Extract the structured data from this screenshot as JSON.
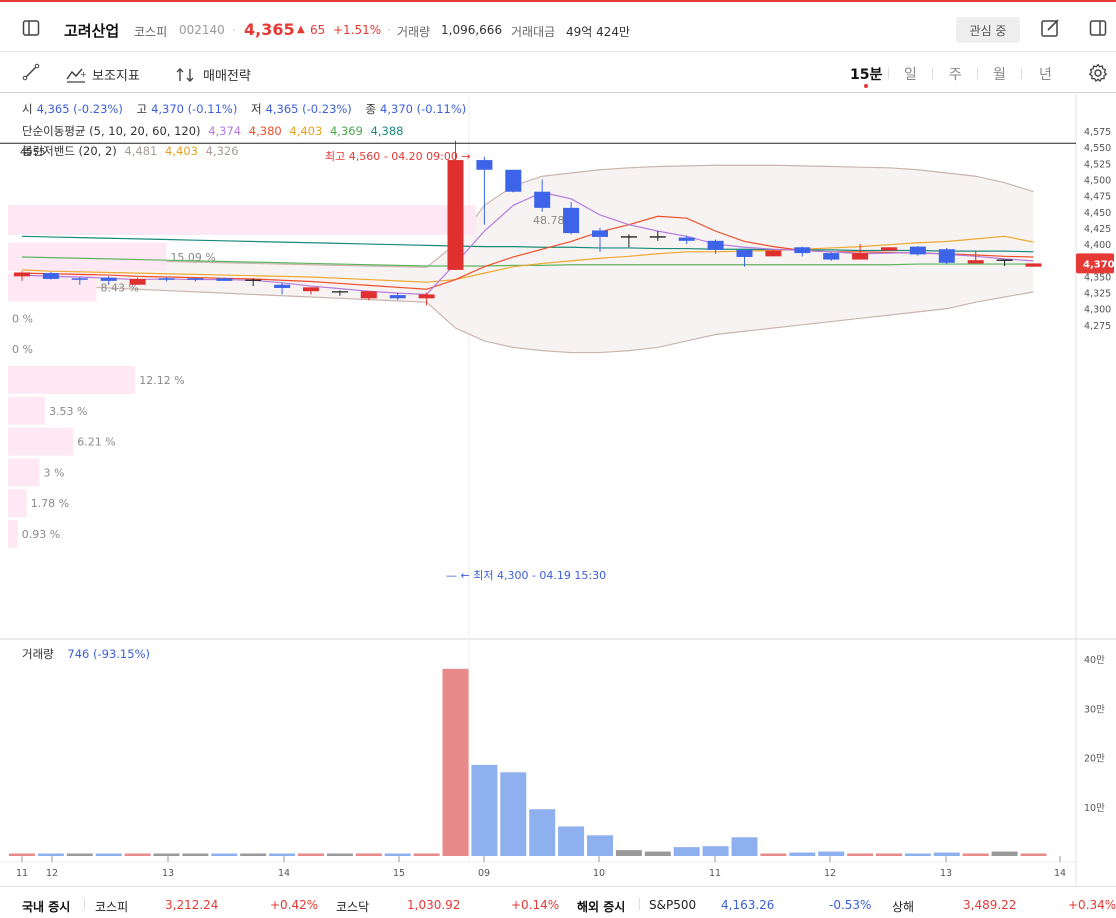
{
  "header": {
    "name": "고려산업",
    "market": "코스피",
    "code": "002140",
    "price": "4,365",
    "change": "65",
    "change_pct": "+1.51%",
    "volume_label": "거래량",
    "volume": "1,096,666",
    "amount_label": "거래대금",
    "amount": "49억 424만",
    "watch_label": "관심 중"
  },
  "toolbar": {
    "indicator_label": "보조지표",
    "strategy_label": "매매전략",
    "periods": [
      "15분",
      "일",
      "주",
      "월",
      "년"
    ],
    "active_period": "15분"
  },
  "legend": {
    "ohlc": {
      "open_label": "시",
      "open": "4,365 (-0.23%)",
      "high_label": "고",
      "high": "4,370 (-0.11%)",
      "low_label": "저",
      "low": "4,365 (-0.23%)",
      "close_label": "종",
      "close": "4,370 (-0.11%)"
    },
    "ma_label": "단순이동평균 (5, 10, 20, 60, 120)",
    "ma_values": [
      "4,374",
      "4,380",
      "4,403",
      "4,369",
      "4,388"
    ],
    "bb_label": "볼린저밴드 (20, 2)",
    "bb_values": [
      "4,481",
      "4,403",
      "4,326"
    ],
    "volume_label": "거래량",
    "volume_value": "746 (-93.15%)"
  },
  "annotations": {
    "high": "최고 4,560 - 04.20 09:00",
    "low": "최저 4,300 - 04.19 15:30",
    "current_price_tag": "4,370",
    "overlap_label": "4555"
  },
  "colors": {
    "up": "#e02f2f",
    "down": "#3d64e8",
    "ma5": "#b57be0",
    "ma10": "#f04e28",
    "ma20": "#f0a830",
    "ma60": "#5fb35f",
    "ma120": "#1a8a7a",
    "bb": "#c9b5b0",
    "bb_fill": "#f7f3f2"
  },
  "chart_data": {
    "type": "candlestick",
    "price_axis_ticks": [
      "4,575",
      "4,550",
      "4,525",
      "4,500",
      "4,475",
      "4,450",
      "4,425",
      "4,400",
      "4,375",
      "4,350",
      "4,325",
      "4,300",
      "4,275"
    ],
    "volume_axis_ticks": [
      "40만",
      "30만",
      "20만",
      "10만"
    ],
    "x_tick_labels": [
      "11",
      "12",
      "13",
      "14",
      "15",
      "09",
      "10",
      "11",
      "12",
      "13",
      "14"
    ],
    "ylim": [
      4265,
      4590
    ],
    "volume_ylim": [
      0,
      400000
    ],
    "candles": [
      {
        "o": 4350,
        "h": 4358,
        "l": 4343,
        "c": 4356
      },
      {
        "o": 4355,
        "h": 4357,
        "l": 4345,
        "c": 4346
      },
      {
        "o": 4347,
        "h": 4349,
        "l": 4337,
        "c": 4346
      },
      {
        "o": 4348,
        "h": 4350,
        "l": 4337,
        "c": 4343
      },
      {
        "o": 4337,
        "h": 4348,
        "l": 4337,
        "c": 4346
      },
      {
        "o": 4347,
        "h": 4349,
        "l": 4342,
        "c": 4346
      },
      {
        "o": 4347,
        "h": 4349,
        "l": 4342,
        "c": 4346
      },
      {
        "o": 4347,
        "h": 4348,
        "l": 4343,
        "c": 4343
      },
      {
        "o": 4344,
        "h": 4347,
        "l": 4335,
        "c": 4344
      },
      {
        "o": 4337,
        "h": 4340,
        "l": 4322,
        "c": 4332
      },
      {
        "o": 4327,
        "h": 4333,
        "l": 4322,
        "c": 4333
      },
      {
        "o": 4326,
        "h": 4328,
        "l": 4320,
        "c": 4326
      },
      {
        "o": 4316,
        "h": 4327,
        "l": 4313,
        "c": 4327
      },
      {
        "o": 4321,
        "h": 4325,
        "l": 4313,
        "c": 4316
      },
      {
        "o": 4316,
        "h": 4325,
        "l": 4305,
        "c": 4322
      },
      {
        "o": 4360,
        "h": 4560,
        "l": 4360,
        "c": 4530
      },
      {
        "o": 4530,
        "h": 4535,
        "l": 4430,
        "c": 4515
      },
      {
        "o": 4515,
        "h": 4515,
        "l": 4480,
        "c": 4481
      },
      {
        "o": 4481,
        "h": 4500,
        "l": 4450,
        "c": 4456
      },
      {
        "o": 4456,
        "h": 4465,
        "l": 4415,
        "c": 4417
      },
      {
        "o": 4421,
        "h": 4425,
        "l": 4388,
        "c": 4411
      },
      {
        "o": 4411,
        "h": 4415,
        "l": 4395,
        "c": 4411
      },
      {
        "o": 4411,
        "h": 4420,
        "l": 4405,
        "c": 4411
      },
      {
        "o": 4410,
        "h": 4413,
        "l": 4400,
        "c": 4405
      },
      {
        "o": 4405,
        "h": 4407,
        "l": 4385,
        "c": 4391
      },
      {
        "o": 4391,
        "h": 4392,
        "l": 4365,
        "c": 4380
      },
      {
        "o": 4381,
        "h": 4391,
        "l": 4381,
        "c": 4390
      },
      {
        "o": 4395,
        "h": 4396,
        "l": 4381,
        "c": 4386
      },
      {
        "o": 4386,
        "h": 4387,
        "l": 4374,
        "c": 4376
      },
      {
        "o": 4376,
        "h": 4400,
        "l": 4376,
        "c": 4386
      },
      {
        "o": 4390,
        "h": 4395,
        "l": 4390,
        "c": 4395
      },
      {
        "o": 4396,
        "h": 4397,
        "l": 4382,
        "c": 4384
      },
      {
        "o": 4392,
        "h": 4394,
        "l": 4369,
        "c": 4371
      },
      {
        "o": 4370,
        "h": 4390,
        "l": 4370,
        "c": 4375
      },
      {
        "o": 4375,
        "h": 4376,
        "l": 4366,
        "c": 4375
      },
      {
        "o": 4365,
        "h": 4370,
        "l": 4365,
        "c": 4370
      }
    ],
    "volumes": [
      3000,
      3000,
      4000,
      3000,
      4000,
      2000,
      2000,
      3000,
      4000,
      2000,
      2000,
      3000,
      3000,
      3000,
      4000,
      380000,
      185000,
      170000,
      95000,
      60000,
      42000,
      12000,
      9000,
      18000,
      20000,
      38000,
      5000,
      7000,
      9000,
      4000,
      3000,
      5000,
      7000,
      5000,
      9000,
      1000
    ],
    "volume_colors": [
      "up",
      "down",
      "flat",
      "down",
      "up",
      "flat",
      "flat",
      "down",
      "flat",
      "down",
      "up",
      "flat",
      "up",
      "down",
      "up",
      "up",
      "down",
      "down",
      "down",
      "down",
      "down",
      "flat",
      "flat",
      "down",
      "down",
      "down",
      "up",
      "down",
      "down",
      "up",
      "up",
      "down",
      "down",
      "up",
      "flat",
      "up"
    ],
    "ma5": [
      4352,
      4350,
      4349,
      4347,
      4345,
      4346,
      4345,
      4345,
      4344,
      4340,
      4335,
      4331,
      4327,
      4324,
      4322,
      4370,
      4420,
      4460,
      4480,
      4470,
      4445,
      4430,
      4420,
      4412,
      4400,
      4395,
      4392,
      4390,
      4388,
      4385,
      4386,
      4387,
      4384,
      4381,
      4377,
      4374
    ],
    "ma10": [
      4355,
      4354,
      4353,
      4352,
      4350,
      4349,
      4348,
      4347,
      4346,
      4344,
      4342,
      4339,
      4336,
      4333,
      4330,
      4345,
      4365,
      4380,
      4392,
      4404,
      4419,
      4430,
      4443,
      4440,
      4420,
      4404,
      4396,
      4390,
      4388,
      4388,
      4387,
      4386,
      4385,
      4383,
      4381,
      4380
    ],
    "ma20": [
      4360,
      4358,
      4357,
      4356,
      4355,
      4354,
      4353,
      4352,
      4351,
      4350,
      4349,
      4347,
      4345,
      4343,
      4341,
      4345,
      4355,
      4365,
      4370,
      4374,
      4378,
      4381,
      4385,
      4388,
      4388,
      4389,
      4390,
      4392,
      4394,
      4396,
      4399,
      4402,
      4404,
      4408,
      4412,
      4403
    ],
    "ma60": [
      4380,
      4379,
      4378,
      4377,
      4376,
      4375,
      4374,
      4373,
      4372,
      4371,
      4370,
      4369,
      4368,
      4367,
      4366,
      4366,
      4366,
      4367,
      4367,
      4368,
      4368,
      4368,
      4368,
      4368,
      4368,
      4368,
      4368,
      4368,
      4368,
      4368,
      4368,
      4369,
      4369,
      4369,
      4369,
      4369
    ],
    "ma120": [
      4412,
      4411,
      4410,
      4409,
      4408,
      4407,
      4406,
      4405,
      4404,
      4403,
      4402,
      4401,
      4400,
      4399,
      4398,
      4397,
      4396,
      4396,
      4395,
      4395,
      4394,
      4394,
      4393,
      4393,
      4392,
      4392,
      4391,
      4391,
      4391,
      4390,
      4390,
      4390,
      4389,
      4389,
      4389,
      4388
    ],
    "bb_upper": [
      4378,
      4377,
      4376,
      4375,
      4374,
      4373,
      4372,
      4371,
      4370,
      4369,
      4368,
      4367,
      4366,
      4365,
      4364,
      4400,
      4460,
      4490,
      4505,
      4510,
      4515,
      4518,
      4520,
      4521,
      4522,
      4522,
      4522,
      4521,
      4520,
      4519,
      4518,
      4515,
      4510,
      4505,
      4495,
      4481
    ],
    "bb_lower": [
      4338,
      4336,
      4334,
      4332,
      4330,
      4328,
      4326,
      4324,
      4322,
      4320,
      4318,
      4316,
      4314,
      4312,
      4310,
      4270,
      4250,
      4240,
      4235,
      4232,
      4232,
      4235,
      4240,
      4250,
      4260,
      4265,
      4270,
      4275,
      4280,
      4285,
      4290,
      4295,
      4300,
      4310,
      4318,
      4326
    ],
    "volume_profile": [
      {
        "label": "0 %",
        "value": 0.0
      },
      {
        "label": "15.09 %",
        "value": 15.09
      },
      {
        "label": "8.43 %",
        "value": 8.43
      },
      {
        "label": "0 %",
        "value": 0.0
      },
      {
        "label": "0 %",
        "value": 0.0
      },
      {
        "label": "12.12 %",
        "value": 12.12
      },
      {
        "label": "3.53 %",
        "value": 3.53
      },
      {
        "label": "6.21 %",
        "value": 6.21
      },
      {
        "label": "3 %",
        "value": 3.0
      },
      {
        "label": "1.78 %",
        "value": 1.78
      },
      {
        "label": "0.93 %",
        "value": 0.93
      }
    ],
    "volume_profile_top": {
      "label": "48.78 %",
      "value": 48.78
    }
  },
  "footer": {
    "domestic_label": "국내 증시",
    "kospi_label": "코스피",
    "kospi": "3,212.24",
    "kospi_chg": "+0.42%",
    "kosdaq_label": "코스닥",
    "kosdaq": "1,030.92",
    "kosdaq_chg": "+0.14%",
    "overseas_label": "해외 증시",
    "sp_label": "S&P500",
    "sp": "4,163.26",
    "sp_chg": "-0.53%",
    "sh_label": "상해",
    "sh": "3,489.22",
    "sh_chg": "+0.34%"
  }
}
